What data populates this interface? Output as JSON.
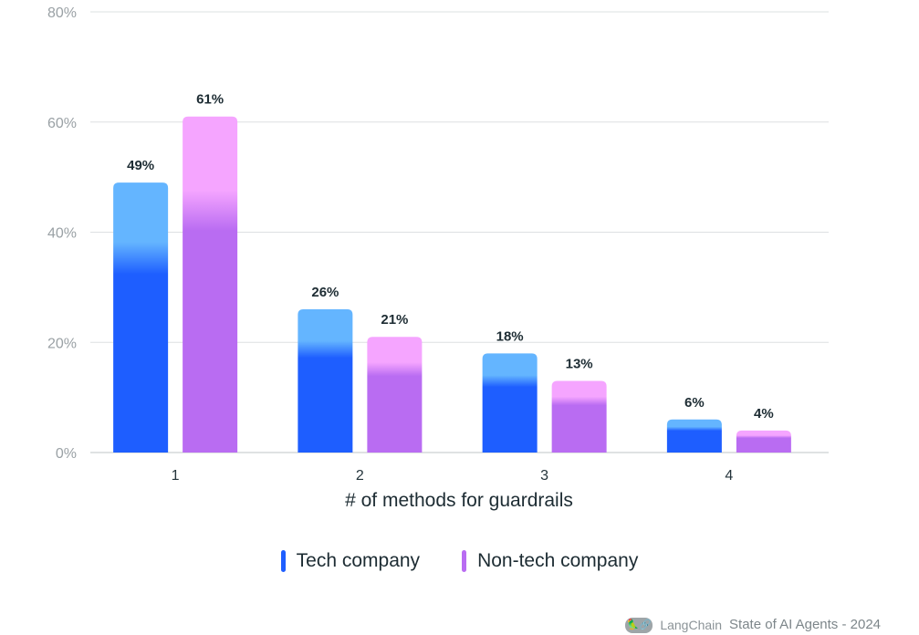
{
  "chart_data": {
    "type": "bar",
    "categories": [
      "1",
      "2",
      "3",
      "4"
    ],
    "series": [
      {
        "name": "Tech company",
        "values": [
          49,
          26,
          18,
          6
        ],
        "labels": [
          "49%",
          "26%",
          "18%",
          "6%"
        ],
        "color_top": "#64b5ff",
        "color_bottom": "#1e5eff"
      },
      {
        "name": "Non-tech company",
        "values": [
          61,
          21,
          13,
          4
        ],
        "labels": [
          "61%",
          "21%",
          "13%",
          "4%"
        ],
        "color_top": "#f5a5ff",
        "color_bottom": "#b96cf2"
      }
    ],
    "xlabel": "# of methods for guardrails",
    "ylabel": "",
    "ylim": [
      0,
      80
    ],
    "y_ticks": [
      0,
      20,
      40,
      60,
      80
    ],
    "y_tick_labels": [
      "0%",
      "20%",
      "40%",
      "60%",
      "80%"
    ],
    "grid": true,
    "legend_position": "bottom-center"
  },
  "footer": {
    "brand": "LangChain",
    "logo_text": "🦜🔗",
    "report_title": "State of AI Agents - 2024"
  }
}
